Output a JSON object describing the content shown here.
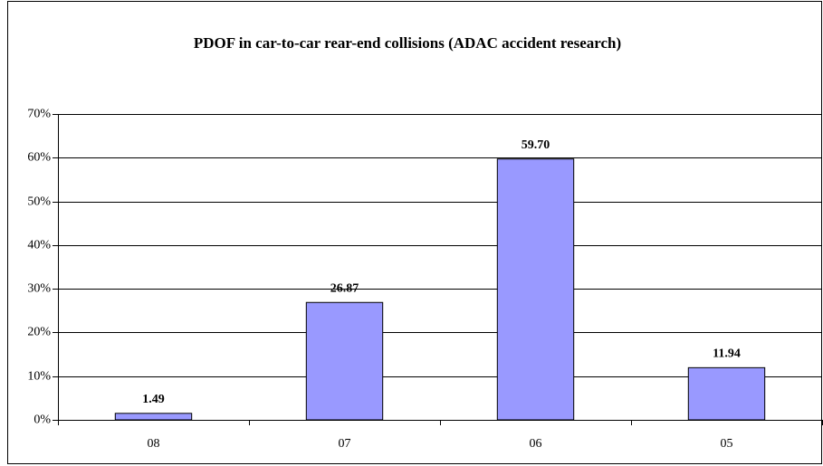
{
  "chart_data": {
    "type": "bar",
    "title": "PDOF in car-to-car rear-end  collisions (ADAC accident research)",
    "categories": [
      "08",
      "07",
      "06",
      "05"
    ],
    "values": [
      1.49,
      26.87,
      59.7,
      11.94
    ],
    "value_labels": [
      "1.49",
      "26.87",
      "59.70",
      "11.94"
    ],
    "color": "#9999ff",
    "ylim": [
      0,
      70
    ],
    "yticks": [
      {
        "value": 0,
        "label": "0%"
      },
      {
        "value": 10,
        "label": "10%"
      },
      {
        "value": 20,
        "label": "20%"
      },
      {
        "value": 30,
        "label": "30%"
      },
      {
        "value": 40,
        "label": "40%"
      },
      {
        "value": 50,
        "label": "50%"
      },
      {
        "value": 60,
        "label": "60%"
      },
      {
        "value": 70,
        "label": "70%"
      }
    ],
    "grid": true
  }
}
